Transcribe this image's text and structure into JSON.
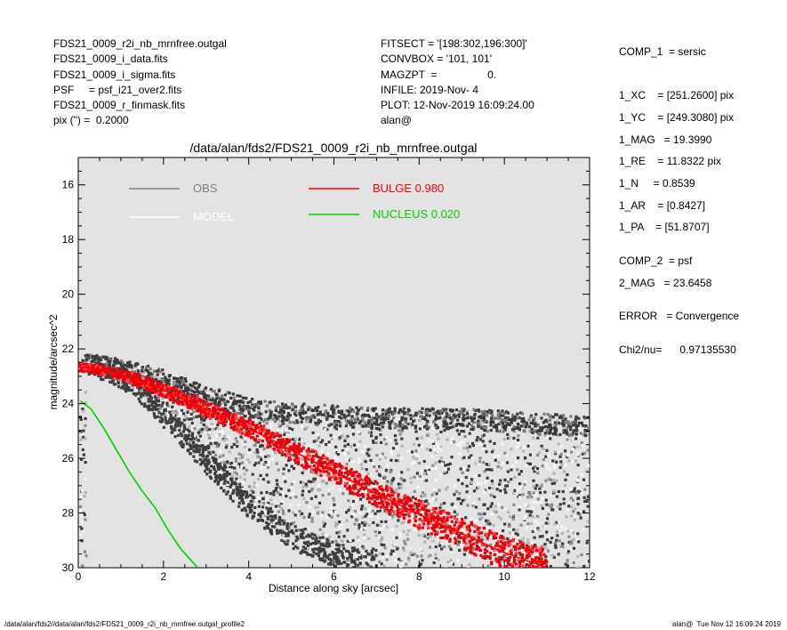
{
  "header_left": [
    "FDS21_0009_r2i_nb_mrnfree.outgal",
    "FDS21_0009_i_data.fits",
    "FDS21_0009_i_sigma.fits",
    "PSF     = psf_i21_over2.fits",
    "FDS21_0009_r_finmask.fits",
    "pix (\") =  0.2000"
  ],
  "header_mid": [
    "FITSECT = '[198:302,196:300]'",
    "CONVBOX = '101, 101'",
    "MAGZPT  =                 0.",
    "INFILE: 2019-Nov- 4",
    "PLOT: 12-Nov-2019 16:09:24.00",
    "alan@"
  ],
  "components": [
    "COMP_1  = sersic",
    "1_XC    = [251.2600] pix",
    "1_YC    = [249.3080] pix",
    "1_MAG   = 19.3990",
    "1_RE    = 11.8322 pix",
    "1_N     = 0.8539",
    "1_AR    = [0.8427]",
    "1_PA    = [51.8707]",
    "COMP_2  = psf",
    "2_MAG   = 23.6458",
    "ERROR   = Convergence",
    "Chi2/nu=      0.97135530"
  ],
  "footer": {
    "left": "/data/alan/fds2//data/alan/fds2/FDS21_0009_r2i_nb_mrnfree.outgal_profile2",
    "right": "alan@  Tue Nov 12 16:09:24 2019"
  },
  "chart_data": {
    "type": "scatter",
    "title": "/data/alan/fds2/FDS21_0009_r2i_nb_mrnfree.outgal",
    "xlabel": "Distance along sky [arcsec]",
    "ylabel": "magnitude/arcsec^2",
    "xlim": [
      0,
      12
    ],
    "ylim": [
      30,
      15
    ],
    "xticks": [
      0,
      2,
      4,
      6,
      8,
      10,
      12
    ],
    "yticks": [
      16,
      18,
      20,
      22,
      24,
      26,
      28,
      30
    ],
    "background": "#e3e3e3",
    "legend": [
      {
        "label": "OBS",
        "color": "#808080"
      },
      {
        "label": "MODEL",
        "color": "#ffffff"
      },
      {
        "label": "BULGE  0.980",
        "color": "#ff0000"
      },
      {
        "label": "NUCLEUS  0.020",
        "color": "#00d000"
      }
    ],
    "series": [
      {
        "name": "OBS",
        "color": "#404040",
        "points": [
          [
            0.1,
            22.4
          ],
          [
            0.5,
            22.5
          ],
          [
            1,
            22.6
          ],
          [
            1.5,
            22.8
          ],
          [
            2,
            23.0
          ],
          [
            2.5,
            23.3
          ],
          [
            3,
            23.6
          ],
          [
            3.5,
            23.8
          ],
          [
            4,
            24.0
          ],
          [
            5,
            24.2
          ],
          [
            6,
            24.3
          ],
          [
            7,
            24.4
          ],
          [
            8,
            24.4
          ],
          [
            9,
            24.4
          ],
          [
            10,
            24.5
          ],
          [
            11,
            24.6
          ],
          [
            12,
            24.7
          ]
        ]
      },
      {
        "name": "OBS",
        "color": "#404040",
        "points": [
          [
            0.2,
            22.6
          ],
          [
            0.8,
            22.9
          ],
          [
            1.2,
            23.3
          ],
          [
            1.6,
            23.8
          ],
          [
            2,
            24.5
          ],
          [
            2.5,
            25.3
          ],
          [
            3,
            26.2
          ],
          [
            3.5,
            27.0
          ],
          [
            4,
            27.8
          ],
          [
            4.5,
            28.4
          ],
          [
            5,
            29.0
          ],
          [
            6,
            29.6
          ],
          [
            7,
            30.0
          ]
        ]
      },
      {
        "name": "BULGE  0.980",
        "color": "#ff0000",
        "points": [
          [
            0,
            22.65
          ],
          [
            0.5,
            22.75
          ],
          [
            1,
            22.95
          ],
          [
            1.5,
            23.2
          ],
          [
            2,
            23.5
          ],
          [
            3,
            24.2
          ],
          [
            4,
            24.9
          ],
          [
            5,
            25.7
          ],
          [
            6,
            26.5
          ],
          [
            7,
            27.3
          ],
          [
            8,
            28.05
          ],
          [
            9,
            28.75
          ],
          [
            10,
            29.45
          ],
          [
            11,
            30.0
          ]
        ]
      },
      {
        "name": "NUCLEUS  0.020",
        "color": "#00d000",
        "points": [
          [
            0.05,
            23.9
          ],
          [
            0.3,
            24.2
          ],
          [
            0.6,
            24.9
          ],
          [
            0.9,
            25.7
          ],
          [
            1.2,
            26.5
          ],
          [
            1.5,
            27.2
          ],
          [
            1.8,
            27.8
          ],
          [
            2.1,
            28.6
          ],
          [
            2.4,
            29.3
          ],
          [
            2.8,
            30.0
          ]
        ]
      }
    ]
  }
}
